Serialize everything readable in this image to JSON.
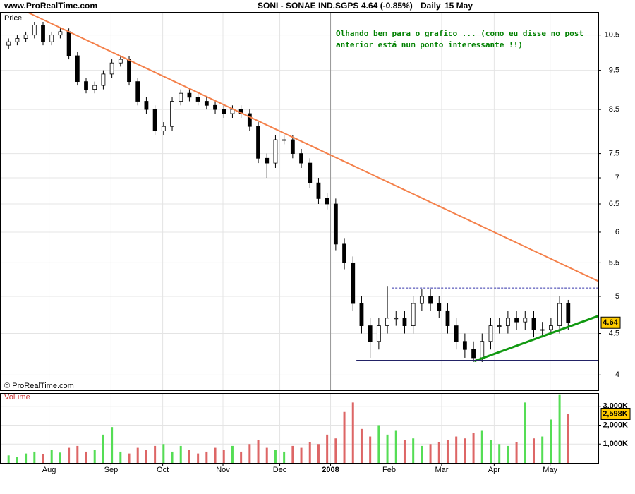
{
  "header": {
    "site": "www.ProRealTime.com",
    "symbol": "SONI - SONAE IND.SGPS",
    "last": "4.64 (-0.85%)",
    "period": "Daily",
    "date": "15 May"
  },
  "chart_data": [
    {
      "type": "candlestick",
      "axis_label": "Price",
      "copyright": "© ProRealTime.com",
      "annotation": [
        "Olhando bem para o grafico ... (como eu disse no post",
        "anterior está num ponto interessante !!)"
      ],
      "annotation_color": "#008000",
      "log_scale": true,
      "grid": true,
      "xlim": [
        -1,
        68.5
      ],
      "ylim": [
        3.83,
        11.21
      ],
      "yticks": [
        4,
        4.5,
        5,
        5.5,
        6,
        6.5,
        7,
        7.5,
        8.5,
        9.5,
        10.5
      ],
      "xticks": [
        {
          "value": 4.7,
          "label": "Aug"
        },
        {
          "value": 11.9,
          "label": "Sep"
        },
        {
          "value": 17.9,
          "label": "Oct"
        },
        {
          "value": 24.9,
          "label": "Nov"
        },
        {
          "value": 31.5,
          "label": "Dec"
        },
        {
          "value": 37.4,
          "label": "2008",
          "bold": true
        },
        {
          "value": 44.2,
          "label": "Feb"
        },
        {
          "value": 50.3,
          "label": "Mar"
        },
        {
          "value": 56.4,
          "label": "Apr"
        },
        {
          "value": 62.9,
          "label": "May"
        }
      ],
      "open": [
        10.2,
        10.3,
        10.4,
        10.5,
        10.8,
        10.3,
        10.5,
        10.6,
        9.9,
        9.2,
        9.0,
        9.1,
        9.4,
        9.7,
        9.8,
        9.2,
        8.7,
        8.5,
        8.0,
        8.1,
        8.7,
        8.9,
        8.8,
        8.7,
        8.6,
        8.5,
        8.4,
        8.5,
        8.4,
        8.1,
        7.4,
        7.3,
        7.8,
        7.8,
        7.5,
        7.3,
        6.9,
        6.6,
        6.5,
        5.8,
        5.5,
        4.9,
        4.6,
        4.4,
        4.6,
        4.7,
        4.7,
        4.6,
        4.9,
        5.0,
        4.9,
        4.8,
        4.6,
        4.4,
        4.3,
        4.2,
        4.4,
        4.6,
        4.6,
        4.7,
        4.65,
        4.7,
        4.55,
        4.55,
        4.6,
        4.9
      ],
      "high": [
        10.4,
        10.5,
        10.6,
        10.9,
        10.9,
        10.6,
        10.7,
        10.7,
        10.0,
        9.3,
        9.2,
        9.5,
        9.8,
        9.9,
        9.9,
        9.3,
        8.8,
        8.6,
        8.2,
        8.8,
        9.0,
        9.0,
        8.9,
        8.8,
        8.7,
        8.6,
        8.6,
        8.6,
        8.5,
        8.2,
        7.5,
        7.9,
        7.9,
        7.9,
        7.6,
        7.4,
        7.0,
        6.7,
        6.6,
        5.9,
        5.6,
        5.0,
        4.7,
        4.7,
        5.15,
        4.8,
        4.8,
        5.0,
        5.1,
        5.1,
        5.0,
        4.9,
        4.7,
        4.5,
        4.4,
        4.5,
        4.7,
        4.7,
        4.8,
        4.8,
        4.8,
        4.8,
        4.65,
        4.7,
        5.0,
        4.95
      ],
      "low": [
        10.1,
        10.2,
        10.3,
        10.4,
        10.2,
        10.2,
        10.4,
        9.8,
        9.1,
        8.9,
        8.9,
        9.0,
        9.3,
        9.6,
        9.1,
        8.6,
        8.4,
        7.9,
        7.9,
        8.0,
        8.6,
        8.7,
        8.6,
        8.5,
        8.4,
        8.3,
        8.3,
        8.3,
        8.0,
        7.3,
        7.0,
        7.2,
        7.7,
        7.4,
        7.2,
        6.8,
        6.5,
        6.4,
        5.7,
        5.4,
        4.8,
        4.5,
        4.2,
        4.3,
        4.5,
        4.6,
        4.5,
        4.5,
        4.8,
        4.8,
        4.7,
        4.5,
        4.3,
        4.2,
        4.15,
        4.15,
        4.3,
        4.5,
        4.5,
        4.55,
        4.55,
        4.45,
        4.45,
        4.5,
        4.5,
        4.55
      ],
      "close": [
        10.3,
        10.4,
        10.5,
        10.8,
        10.3,
        10.5,
        10.6,
        9.9,
        9.2,
        9.0,
        9.1,
        9.4,
        9.7,
        9.8,
        9.2,
        8.7,
        8.5,
        8.0,
        8.1,
        8.7,
        8.9,
        8.8,
        8.7,
        8.6,
        8.5,
        8.4,
        8.5,
        8.4,
        8.1,
        7.4,
        7.3,
        7.8,
        7.8,
        7.5,
        7.3,
        6.9,
        6.6,
        6.5,
        5.8,
        5.5,
        4.9,
        4.6,
        4.4,
        4.6,
        4.7,
        4.7,
        4.6,
        4.9,
        5.0,
        4.9,
        4.8,
        4.6,
        4.4,
        4.3,
        4.2,
        4.4,
        4.6,
        4.6,
        4.7,
        4.65,
        4.7,
        4.55,
        4.55,
        4.6,
        4.9,
        4.64
      ],
      "last_value": 4.64,
      "last_color": "#ffcc00",
      "lines": [
        {
          "from": [
            2.28,
            11.19
          ],
          "to": [
            68.5,
            5.22
          ],
          "color": "#f4804a",
          "width": 2
        },
        {
          "from": [
            54.1,
            4.16
          ],
          "to": [
            68.5,
            4.73
          ],
          "color": "#119911",
          "width": 3
        },
        {
          "from": [
            44.5,
            5.12
          ],
          "to": [
            68.5,
            5.12
          ],
          "color": "#3333aa",
          "width": 1,
          "dashed": true
        },
        {
          "from": [
            40.4,
            4.17
          ],
          "to": [
            68.5,
            4.17
          ],
          "color": "#222266",
          "width": 1
        }
      ],
      "divider": 37.4
    },
    {
      "type": "volume",
      "axis_label": "Volume",
      "xlim": [
        -1,
        68.5
      ],
      "ylim": [
        0,
        3700
      ],
      "yticks": [
        {
          "value": 1000,
          "label": "1,000K"
        },
        {
          "value": 2000,
          "label": "2,000K"
        },
        {
          "value": 3000,
          "label": "3,000K"
        }
      ],
      "up_color": "#55dd55",
      "down_color": "#dd6666",
      "values": [
        400,
        300,
        500,
        600,
        450,
        700,
        550,
        800,
        900,
        600,
        700,
        1500,
        1900,
        600,
        500,
        800,
        700,
        900,
        1000,
        600,
        900,
        700,
        500,
        600,
        800,
        700,
        900,
        600,
        1000,
        1200,
        800,
        700,
        600,
        900,
        800,
        1100,
        1000,
        1500,
        1300,
        2700,
        3200,
        1800,
        1400,
        2000,
        1500,
        1700,
        1200,
        1300,
        900,
        1000,
        1100,
        1200,
        1400,
        1300,
        1600,
        1700,
        1200,
        1000,
        900,
        1100,
        3200,
        1300,
        1400,
        2300,
        3600,
        2598
      ],
      "last_value": {
        "value": 2598,
        "label": "2,598K"
      }
    }
  ]
}
